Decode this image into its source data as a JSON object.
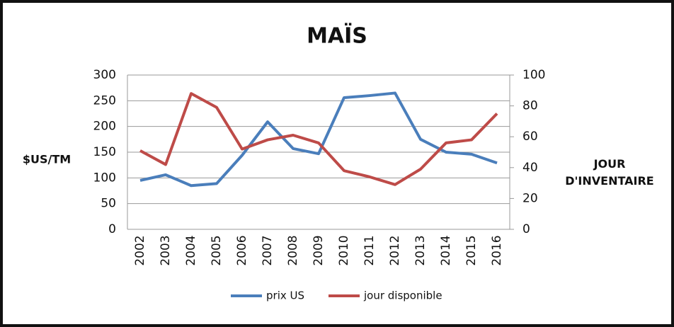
{
  "chart_data": {
    "type": "line",
    "title": "MAÏS",
    "y_label": "$US/TM",
    "y2_label": "JOUR D'INVENTAIRE",
    "categories": [
      "2002",
      "2003",
      "2004",
      "2005",
      "2006",
      "2007",
      "2008",
      "2009",
      "2010",
      "2011",
      "2012",
      "2013",
      "2014",
      "2015",
      "2016"
    ],
    "series": [
      {
        "name": "prix US",
        "color": "#4a7ebb",
        "values": [
          95,
          106,
          85,
          89,
          144,
          209,
          157,
          147,
          256,
          260,
          265,
          175,
          150,
          146,
          129
        ]
      },
      {
        "name": "jour disponible",
        "color": "#be4b48",
        "axis": "y2",
        "values": [
          51,
          42,
          88,
          79,
          52,
          58,
          61,
          56,
          38,
          34,
          29,
          39,
          56,
          58,
          75
        ]
      }
    ],
    "ylim": [
      0,
      300
    ],
    "yticks": [
      0,
      50,
      100,
      150,
      200,
      250,
      300
    ],
    "y2lim": [
      0,
      100
    ],
    "y2ticks": [
      0,
      20,
      40,
      60,
      80,
      100
    ],
    "grid": true
  }
}
